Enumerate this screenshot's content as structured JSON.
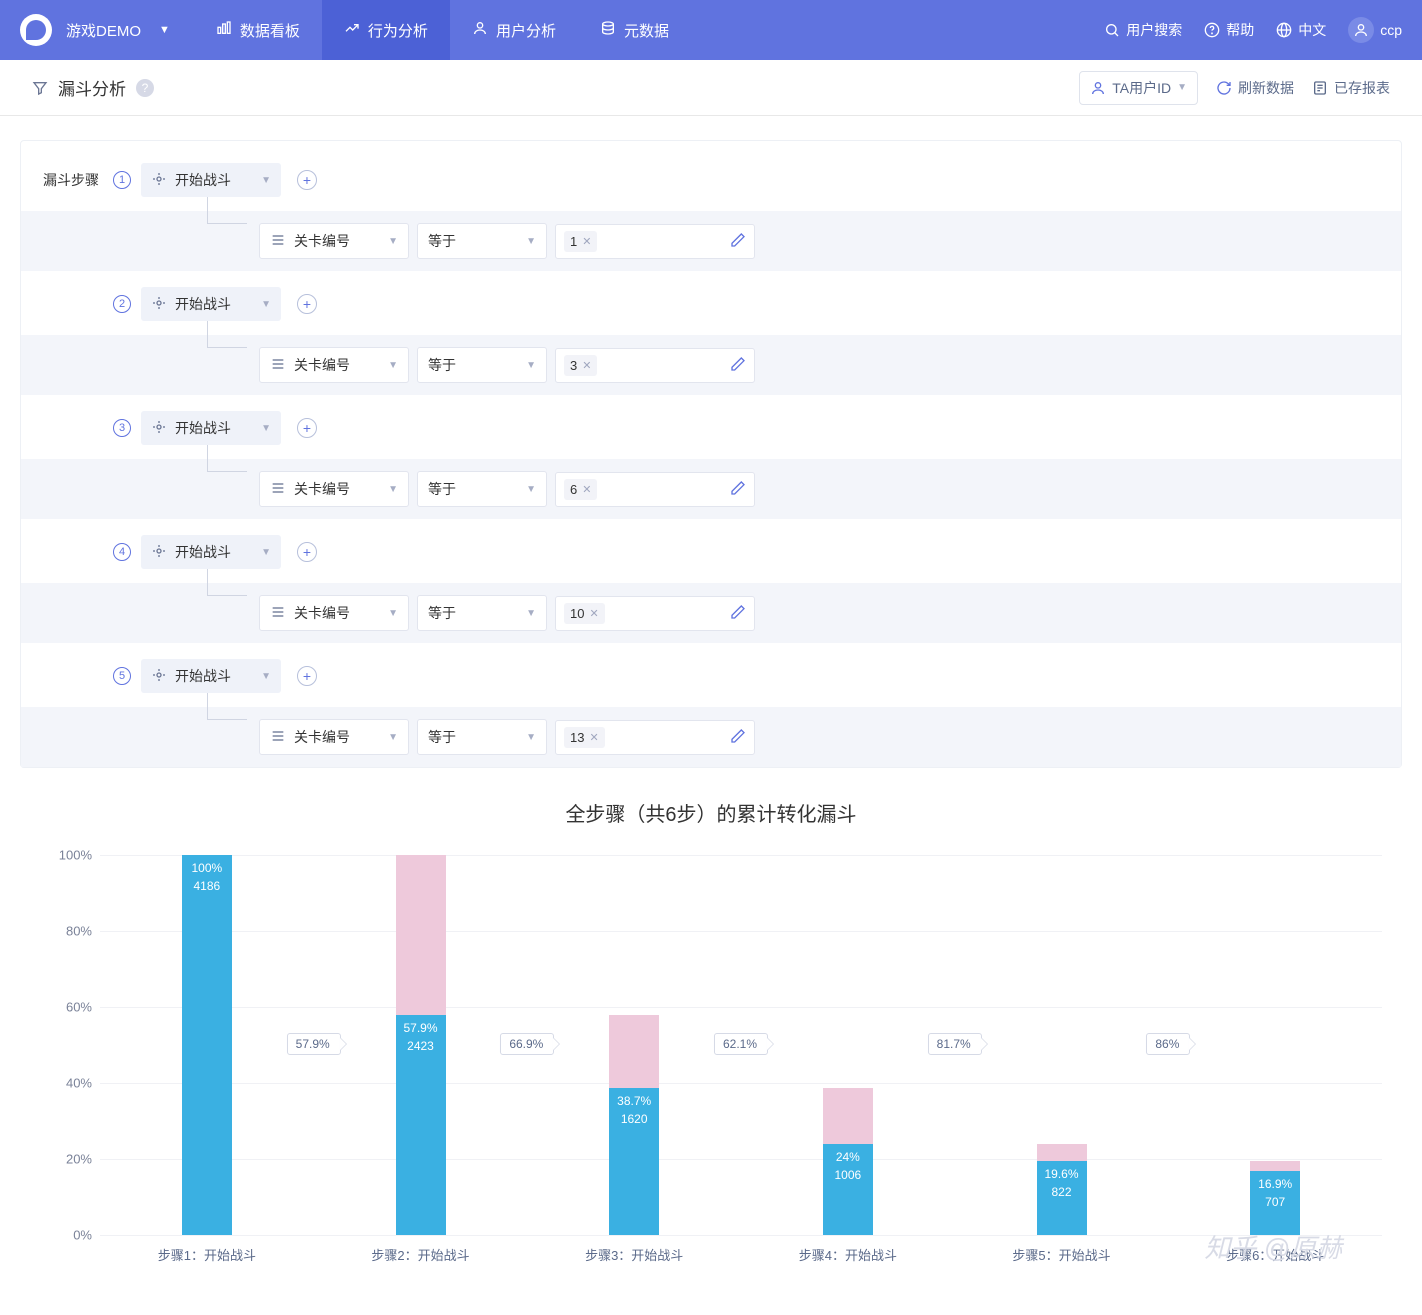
{
  "topnav": {
    "project_name": "游戏DEMO",
    "tabs": [
      {
        "label": "数据看板"
      },
      {
        "label": "行为分析",
        "active": true
      },
      {
        "label": "用户分析"
      },
      {
        "label": "元数据"
      }
    ],
    "right": {
      "search": "用户搜索",
      "help": "帮助",
      "lang": "中文",
      "user": "ccp"
    }
  },
  "subhead": {
    "title": "漏斗分析",
    "user_tag": "TA用户ID",
    "refresh": "刷新数据",
    "saved": "已存报表"
  },
  "config": {
    "label": "漏斗步骤",
    "event_name": "开始战斗",
    "filter_field": "关卡编号",
    "filter_op": "等于",
    "steps": [
      {
        "num": "1",
        "value": "1"
      },
      {
        "num": "2",
        "value": "3"
      },
      {
        "num": "3",
        "value": "6"
      },
      {
        "num": "4",
        "value": "10"
      },
      {
        "num": "5",
        "value": "13"
      }
    ]
  },
  "chart": {
    "title": "全步骤（共6步）的累计转化漏斗",
    "type": "funnel-bar",
    "colors": {
      "bar": "#3ab0e2",
      "dropoff": "#eec9db",
      "grid": "#f0f1f5",
      "text": "#5b6a8a"
    },
    "y_ticks": [
      "100%",
      "80%",
      "60%",
      "40%",
      "20%",
      "0%"
    ],
    "ylim": [
      0,
      100
    ],
    "bars": [
      {
        "label": "步骤1：开始战斗",
        "pct": 100,
        "count": "4186",
        "pct_label": "100%",
        "prev_top": 100,
        "conn": "57.9%"
      },
      {
        "label": "步骤2：开始战斗",
        "pct": 57.9,
        "count": "2423",
        "pct_label": "57.9%",
        "prev_top": 100,
        "conn": "66.9%"
      },
      {
        "label": "步骤3：开始战斗",
        "pct": 38.7,
        "count": "1620",
        "pct_label": "38.7%",
        "prev_top": 57.9,
        "conn": "62.1%"
      },
      {
        "label": "步骤4：开始战斗",
        "pct": 24,
        "count": "1006",
        "pct_label": "24%",
        "prev_top": 38.7,
        "conn": "81.7%"
      },
      {
        "label": "步骤5：开始战斗",
        "pct": 19.6,
        "count": "822",
        "pct_label": "19.6%",
        "prev_top": 24,
        "conn": "86%"
      },
      {
        "label": "步骤6：开始战斗",
        "pct": 16.9,
        "count": "707",
        "pct_label": "16.9%",
        "prev_top": 19.6,
        "conn": null
      }
    ]
  },
  "watermark": "知乎 @原赫"
}
